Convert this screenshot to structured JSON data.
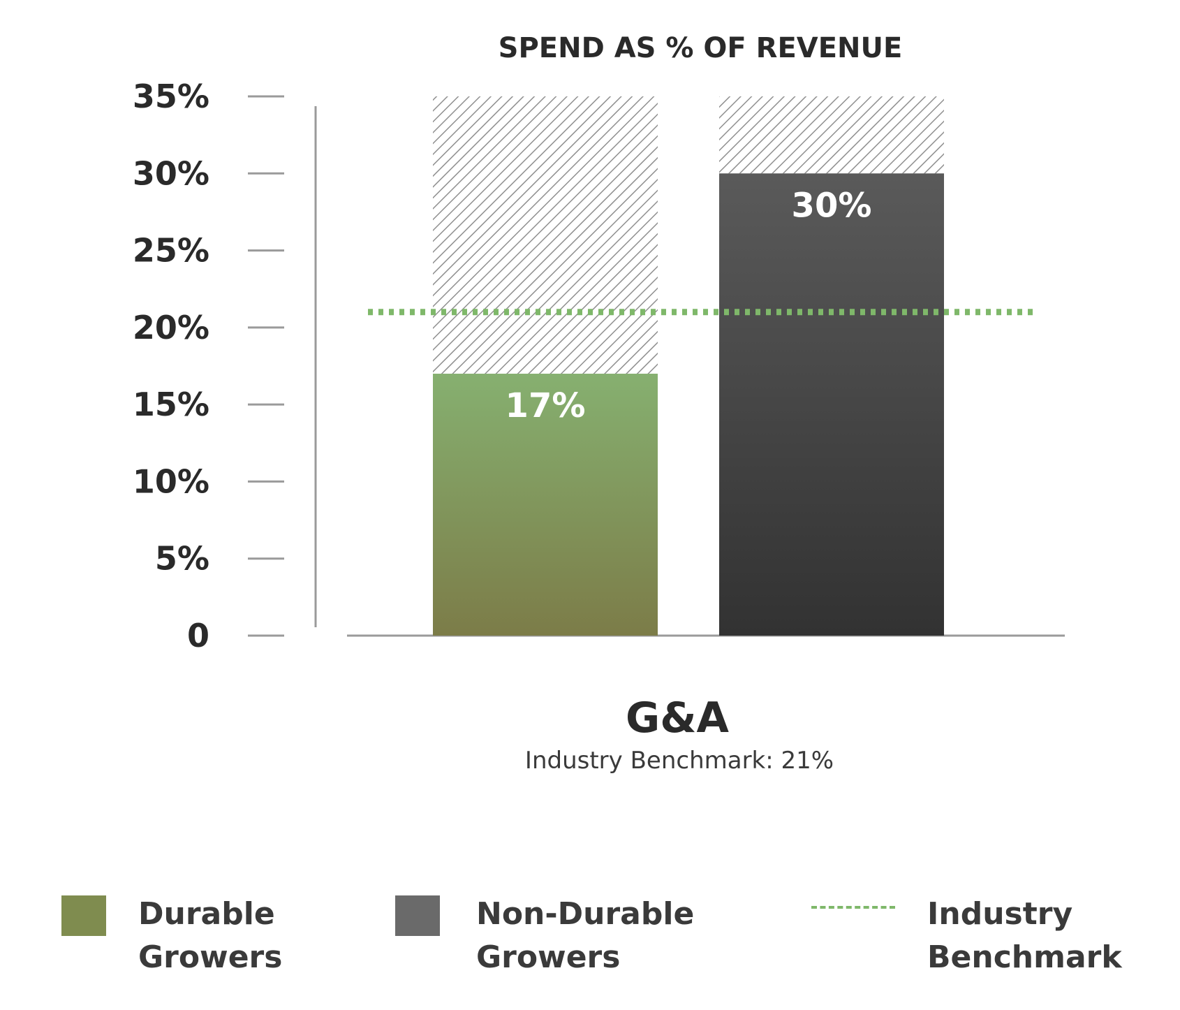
{
  "chart_data": {
    "type": "bar",
    "title": "SPEND AS % OF REVENUE",
    "category_label": "G&A",
    "subtitle": "Industry Benchmark: 21%",
    "ylim": [
      0,
      35
    ],
    "y_ticks": [
      0,
      5,
      10,
      15,
      20,
      25,
      30,
      35
    ],
    "y_tick_labels": [
      "0",
      "5%",
      "10%",
      "15%",
      "20%",
      "25%",
      "30%",
      "35%"
    ],
    "series": [
      {
        "name": "Durable Growers",
        "value": 17,
        "label": "17%",
        "color": "#7c9258"
      },
      {
        "name": "Non-Durable Growers",
        "value": 30,
        "label": "30%",
        "color": "#3e3e3e"
      }
    ],
    "benchmark": {
      "name": "Industry Benchmark",
      "value": 21,
      "color": "#7fb86a"
    },
    "legend_position": "bottom"
  },
  "legend": {
    "durable": "Durable\nGrowers",
    "non_durable": "Non-Durable\nGrowers",
    "benchmark": "Industry\nBenchmark"
  },
  "colors": {
    "durable_top": "#86b070",
    "durable_bottom": "#7c7c48",
    "non_durable_top": "#5a5a5a",
    "non_durable_bottom": "#323232",
    "hatch": "#8f8f8f",
    "axis": "#9a9a9a",
    "text": "#2a2a2a",
    "legend_durable": "#7f8c4f",
    "legend_non_durable": "#6a6a6a",
    "legend_benchmark": "#7fb86a"
  }
}
